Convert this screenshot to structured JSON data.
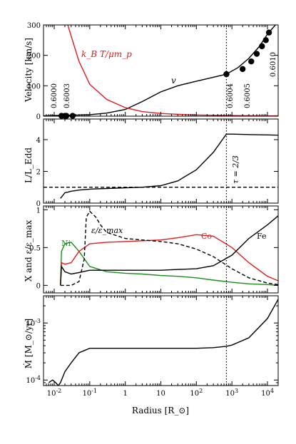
{
  "chart_data": [
    {
      "type": "line",
      "ylabel": "Velocity [km/s]",
      "ylim": [
        0,
        300
      ],
      "yticks": [
        0,
        100,
        200,
        300
      ],
      "series": [
        {
          "name": "v",
          "color": "#000000",
          "x": [
            0.005,
            0.01,
            0.03,
            0.1,
            0.3,
            1,
            3,
            10,
            30,
            100,
            300,
            700,
            1500,
            3000,
            6000,
            10000,
            20000
          ],
          "y": [
            1,
            2,
            3,
            5,
            10,
            22,
            48,
            80,
            100,
            115,
            128,
            138,
            160,
            190,
            230,
            270,
            310
          ]
        },
        {
          "name": "k_B T / μ m_p",
          "color": "#e41a1c",
          "x": [
            0.015,
            0.02,
            0.05,
            0.1,
            0.3,
            1,
            3,
            10,
            30,
            100,
            300,
            1000,
            10000,
            20000
          ],
          "y": [
            350,
            330,
            180,
            105,
            55,
            28,
            15,
            9,
            6,
            4,
            3,
            2,
            1,
            1
          ]
        }
      ],
      "markers": {
        "x": [
          0.016,
          0.02,
          0.022,
          0.033,
          700,
          2000,
          3500,
          5000,
          7000,
          9000,
          11000
        ],
        "y": [
          1,
          1,
          1,
          1,
          138,
          155,
          180,
          205,
          230,
          250,
          275
        ]
      },
      "annotations": [
        "v",
        "k_B T / μ m_p",
        "0.6000",
        "0.6003",
        "0.6004",
        "0.6005",
        "0.6010"
      ]
    },
    {
      "type": "line",
      "ylabel": "L / L_Edd",
      "ylim": [
        0,
        5.3
      ],
      "yticks": [
        0,
        2,
        4
      ],
      "annotations": [
        "τ = 2/3"
      ],
      "series": [
        {
          "name": "L/L_Edd",
          "color": "#000000",
          "x": [
            0.015,
            0.02,
            0.025,
            0.03,
            0.05,
            0.1,
            0.3,
            1,
            3,
            10,
            30,
            100,
            300,
            700,
            1000,
            3000,
            10000,
            20000
          ],
          "y": [
            0.3,
            0.65,
            0.7,
            0.75,
            0.82,
            0.88,
            0.92,
            0.96,
            1.0,
            1.1,
            1.4,
            2.1,
            3.2,
            4.35,
            4.35,
            4.32,
            4.3,
            4.28
          ]
        },
        {
          "name": "unity",
          "color": "#000000",
          "dashed": true,
          "x": [
            0.005,
            20000
          ],
          "y": [
            1,
            1
          ]
        }
      ]
    },
    {
      "type": "line",
      "ylabel": "X and ε/ε_max",
      "ylim": [
        -0.1,
        1.05
      ],
      "yticks": [
        0,
        0.5,
        1
      ],
      "series": [
        {
          "name": "Ni",
          "color": "#1a8c1a",
          "x": [
            0.015,
            0.016,
            0.02,
            0.03,
            0.05,
            0.1,
            0.3,
            1,
            3,
            10,
            30,
            100,
            300,
            1000,
            3000,
            10000,
            20000
          ],
          "y": [
            0,
            0.45,
            0.55,
            0.57,
            0.45,
            0.25,
            0.18,
            0.16,
            0.15,
            0.13,
            0.12,
            0.1,
            0.07,
            0.04,
            0.02,
            0.01,
            0.0
          ]
        },
        {
          "name": "Co",
          "color": "#e41a1c",
          "x": [
            0.015,
            0.016,
            0.02,
            0.03,
            0.05,
            0.1,
            0.3,
            1,
            3,
            10,
            30,
            100,
            300,
            1000,
            3000,
            10000,
            20000
          ],
          "y": [
            0,
            0.3,
            0.28,
            0.3,
            0.45,
            0.55,
            0.57,
            0.58,
            0.59,
            0.6,
            0.63,
            0.67,
            0.65,
            0.5,
            0.3,
            0.12,
            0.06
          ]
        },
        {
          "name": "Fe",
          "color": "#000000",
          "x": [
            0.015,
            0.016,
            0.02,
            0.03,
            0.05,
            0.1,
            0.3,
            1,
            3,
            10,
            30,
            100,
            300,
            1000,
            3000,
            10000,
            20000
          ],
          "y": [
            0,
            0.25,
            0.18,
            0.15,
            0.17,
            0.2,
            0.2,
            0.2,
            0.2,
            0.2,
            0.21,
            0.22,
            0.26,
            0.4,
            0.62,
            0.8,
            0.92
          ]
        },
        {
          "name": "ε/ε_max",
          "color": "#000000",
          "dashed": true,
          "x": [
            0.015,
            0.03,
            0.05,
            0.07,
            0.08,
            0.1,
            0.15,
            0.2,
            0.3,
            1,
            3,
            10,
            30,
            100,
            300,
            1000,
            3000,
            10000,
            20000
          ],
          "y": [
            0,
            0,
            0.05,
            0.35,
            0.9,
            0.98,
            0.9,
            0.8,
            0.7,
            0.62,
            0.6,
            0.58,
            0.55,
            0.48,
            0.38,
            0.22,
            0.1,
            0.03,
            0.01
          ]
        }
      ],
      "annotations": [
        "Ni",
        "Co",
        "Fe",
        "ε/ε_max"
      ]
    },
    {
      "type": "line",
      "ylabel": "Ṁ [M_⊙/yr]",
      "yscale": "log",
      "ylim": [
        8e-05,
        0.003
      ],
      "ytick_labels": [
        "10^-4",
        "10^-3"
      ],
      "series": [
        {
          "name": "Ṁ",
          "color": "#000000",
          "x": [
            0.007,
            0.009,
            0.011,
            0.013,
            0.015,
            0.02,
            0.03,
            0.05,
            0.1,
            0.3,
            1,
            3,
            10,
            30,
            100,
            300,
            700,
            1000,
            3000,
            10000,
            20000
          ],
          "y": [
            9e-05,
            0.0001,
            9e-05,
            8e-05,
            9e-05,
            0.00014,
            0.0002,
            0.0003,
            0.00036,
            0.00036,
            0.00036,
            0.00036,
            0.00036,
            0.00036,
            0.00036,
            0.00037,
            0.00039,
            0.00041,
            0.00055,
            0.0012,
            0.0026
          ]
        }
      ]
    }
  ],
  "xaxis": {
    "label": "Radius [R_⊙]",
    "scale": "log",
    "xlim": [
      0.005,
      20000
    ],
    "tick_labels": [
      "10^-2",
      "10^-1",
      "1",
      "10",
      "10^2",
      "10^3",
      "10^4"
    ],
    "vline_x": 700
  },
  "labels": {
    "p0_ylabel": "Velocity [km/s]",
    "p1_ylabel": "L/L_Edd",
    "p2_ylabel": "X and ε/ε_max",
    "p3_ylabel": "Ṁ [M_⊙/yr]",
    "xlabel": "Radius [R_⊙]",
    "v": "v",
    "kT": "k_B T/μm_p",
    "tau": "τ = 2/3",
    "Ni": "Ni",
    "Co": "Co",
    "Fe": "Fe",
    "eps": "ε/ε_max",
    "m0": "0.6000",
    "m1": "0.6003",
    "m2": "0.6004",
    "m3": "0.6005",
    "m4": "0.6010"
  }
}
